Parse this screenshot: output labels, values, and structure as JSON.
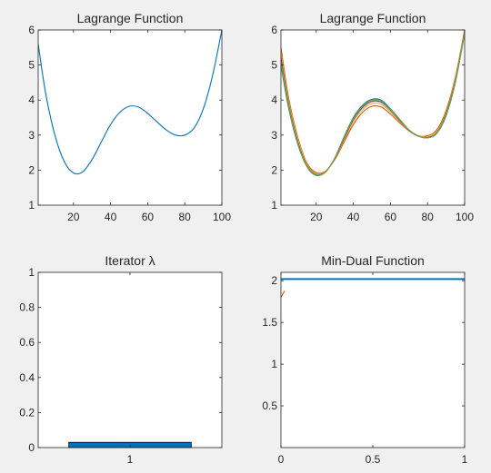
{
  "window": {
    "background": "#f0f0f0"
  },
  "chart_data": [
    {
      "id": "ax1",
      "type": "line",
      "title": "Lagrange Function",
      "xlabel": "",
      "ylabel": "",
      "xlim": [
        1,
        100
      ],
      "ylim": [
        1,
        6
      ],
      "xticks": [
        20,
        40,
        60,
        80,
        100
      ],
      "yticks": [
        1,
        2,
        3,
        4,
        5,
        6
      ],
      "grid": false,
      "series": [
        {
          "color": "#0072bd",
          "points": [
            [
              1,
              5.6
            ],
            [
              5,
              4.2
            ],
            [
              10,
              3.0
            ],
            [
              15,
              2.25
            ],
            [
              20,
              1.92
            ],
            [
              25,
              1.95
            ],
            [
              30,
              2.3
            ],
            [
              35,
              2.8
            ],
            [
              40,
              3.3
            ],
            [
              45,
              3.65
            ],
            [
              50,
              3.82
            ],
            [
              55,
              3.8
            ],
            [
              60,
              3.62
            ],
            [
              65,
              3.38
            ],
            [
              70,
              3.15
            ],
            [
              75,
              3.0
            ],
            [
              80,
              3.0
            ],
            [
              85,
              3.2
            ],
            [
              90,
              3.75
            ],
            [
              95,
              4.7
            ],
            [
              100,
              6.0
            ]
          ]
        }
      ]
    },
    {
      "id": "ax2",
      "type": "line",
      "title": "Lagrange Function",
      "xlabel": "",
      "ylabel": "",
      "xlim": [
        1,
        100
      ],
      "ylim": [
        1,
        6
      ],
      "xticks": [
        20,
        40,
        60,
        80,
        100
      ],
      "yticks": [
        1,
        2,
        3,
        4,
        5,
        6
      ],
      "grid": false,
      "series": [
        {
          "color": "#0072bd",
          "points": [
            [
              1,
              5.0
            ],
            [
              5,
              3.8
            ],
            [
              10,
              2.75
            ],
            [
              15,
              2.1
            ],
            [
              20,
              1.85
            ],
            [
              25,
              1.95
            ],
            [
              30,
              2.35
            ],
            [
              35,
              2.95
            ],
            [
              40,
              3.5
            ],
            [
              45,
              3.85
            ],
            [
              50,
              4.02
            ],
            [
              55,
              4.0
            ],
            [
              60,
              3.75
            ],
            [
              65,
              3.45
            ],
            [
              70,
              3.15
            ],
            [
              75,
              2.98
            ],
            [
              80,
              2.92
            ],
            [
              85,
              3.05
            ],
            [
              90,
              3.55
            ],
            [
              95,
              4.5
            ],
            [
              100,
              5.9
            ]
          ]
        },
        {
          "color": "#d95319",
          "points": [
            [
              1,
              5.5
            ],
            [
              5,
              4.1
            ],
            [
              10,
              2.95
            ],
            [
              15,
              2.2
            ],
            [
              20,
              1.93
            ],
            [
              25,
              1.97
            ],
            [
              30,
              2.3
            ],
            [
              35,
              2.8
            ],
            [
              40,
              3.3
            ],
            [
              45,
              3.65
            ],
            [
              50,
              3.82
            ],
            [
              55,
              3.8
            ],
            [
              60,
              3.6
            ],
            [
              65,
              3.35
            ],
            [
              70,
              3.12
            ],
            [
              75,
              2.98
            ],
            [
              80,
              2.98
            ],
            [
              85,
              3.15
            ],
            [
              90,
              3.7
            ],
            [
              95,
              4.65
            ],
            [
              100,
              6.0
            ]
          ]
        },
        {
          "color": "#edb120",
          "points": [
            [
              1,
              5.35
            ],
            [
              5,
              4.0
            ],
            [
              10,
              2.9
            ],
            [
              15,
              2.17
            ],
            [
              20,
              1.9
            ],
            [
              25,
              1.96
            ],
            [
              30,
              2.32
            ],
            [
              35,
              2.86
            ],
            [
              40,
              3.38
            ],
            [
              45,
              3.73
            ],
            [
              50,
              3.9
            ],
            [
              55,
              3.88
            ],
            [
              60,
              3.66
            ],
            [
              65,
              3.39
            ],
            [
              70,
              3.13
            ],
            [
              75,
              2.98
            ],
            [
              80,
              2.95
            ],
            [
              85,
              3.1
            ],
            [
              90,
              3.64
            ],
            [
              95,
              4.6
            ],
            [
              100,
              5.96
            ]
          ]
        },
        {
          "color": "#7e2f8e",
          "points": [
            [
              1,
              5.2
            ],
            [
              5,
              3.9
            ],
            [
              10,
              2.82
            ],
            [
              15,
              2.13
            ],
            [
              20,
              1.87
            ],
            [
              25,
              1.95
            ],
            [
              30,
              2.33
            ],
            [
              35,
              2.9
            ],
            [
              40,
              3.44
            ],
            [
              45,
              3.79
            ],
            [
              50,
              3.96
            ],
            [
              55,
              3.94
            ],
            [
              60,
              3.71
            ],
            [
              65,
              3.42
            ],
            [
              70,
              3.14
            ],
            [
              75,
              2.97
            ],
            [
              80,
              2.93
            ],
            [
              85,
              3.07
            ],
            [
              90,
              3.6
            ],
            [
              95,
              4.55
            ],
            [
              100,
              5.93
            ]
          ]
        },
        {
          "color": "#77ac30",
          "points": [
            [
              1,
              5.1
            ],
            [
              5,
              3.85
            ],
            [
              10,
              2.78
            ],
            [
              15,
              2.11
            ],
            [
              20,
              1.86
            ],
            [
              25,
              1.94
            ],
            [
              30,
              2.34
            ],
            [
              35,
              2.93
            ],
            [
              40,
              3.47
            ],
            [
              45,
              3.82
            ],
            [
              50,
              3.99
            ],
            [
              55,
              3.97
            ],
            [
              60,
              3.73
            ],
            [
              65,
              3.44
            ],
            [
              70,
              3.15
            ],
            [
              75,
              2.98
            ],
            [
              80,
              2.92
            ],
            [
              85,
              3.06
            ],
            [
              90,
              3.57
            ],
            [
              95,
              4.52
            ],
            [
              100,
              5.91
            ]
          ]
        }
      ]
    },
    {
      "id": "ax3",
      "type": "bar",
      "title": "Iterator λ",
      "xlabel": "",
      "ylabel": "",
      "xlim": [
        0.4,
        1.6
      ],
      "ylim": [
        0,
        1
      ],
      "xticks": [
        1
      ],
      "yticks": [
        0,
        0.2,
        0.4,
        0.6,
        0.8,
        1
      ],
      "ytick_labels": [
        "0",
        "0.2",
        "0.4",
        "0.6",
        "0.8",
        "1"
      ],
      "grid": false,
      "categories": [
        "1"
      ],
      "values": [
        0.03
      ],
      "bar_width": 0.8,
      "bar_color": "#0072bd"
    },
    {
      "id": "ax4",
      "type": "line",
      "title": "Min-Dual Function",
      "xlabel": "",
      "ylabel": "",
      "xlim": [
        0,
        1
      ],
      "ylim": [
        0,
        2.1
      ],
      "xticks": [
        0,
        0.5,
        1
      ],
      "xtick_labels": [
        "0",
        "0.5",
        "1"
      ],
      "yticks": [
        0.5,
        1,
        1.5,
        2
      ],
      "ytick_labels": [
        "0.5",
        "1",
        "1.5",
        "2"
      ],
      "grid": false,
      "series": [
        {
          "color": "#0072bd",
          "points": [
            [
              0,
              2.02
            ],
            [
              1,
              2.02
            ]
          ]
        },
        {
          "color": "#d95319",
          "points": [
            [
              0,
              1.8
            ],
            [
              0.02,
              1.88
            ]
          ]
        }
      ]
    }
  ]
}
